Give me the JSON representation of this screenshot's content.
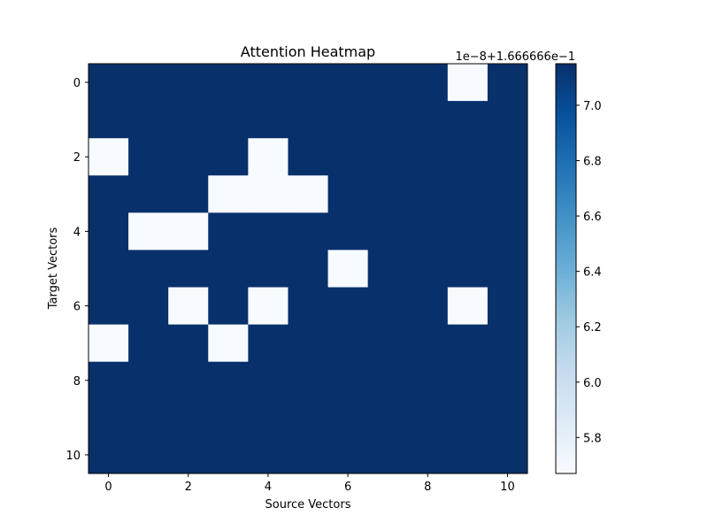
{
  "chart_data": {
    "type": "heatmap",
    "title": "Attention Heatmap",
    "xlabel": "Source Vectors",
    "ylabel": "Target Vectors",
    "x_ticks": [
      "0",
      "2",
      "4",
      "6",
      "8",
      "10"
    ],
    "y_ticks": [
      "0",
      "2",
      "4",
      "6",
      "8",
      "10"
    ],
    "rows": 11,
    "cols": 11,
    "low_value": 0.16666665733,
    "high_value": 0.16666667149,
    "cells": [
      [
        1,
        1,
        1,
        1,
        1,
        1,
        1,
        1,
        1,
        0,
        1
      ],
      [
        1,
        1,
        1,
        1,
        1,
        1,
        1,
        1,
        1,
        1,
        1
      ],
      [
        0,
        1,
        1,
        1,
        0,
        1,
        1,
        1,
        1,
        1,
        1
      ],
      [
        1,
        1,
        1,
        0,
        0,
        0,
        1,
        1,
        1,
        1,
        1
      ],
      [
        1,
        0,
        0,
        1,
        1,
        1,
        1,
        1,
        1,
        1,
        1
      ],
      [
        1,
        1,
        1,
        1,
        1,
        1,
        0,
        1,
        1,
        1,
        1
      ],
      [
        1,
        1,
        0,
        1,
        0,
        1,
        1,
        1,
        1,
        0,
        1
      ],
      [
        0,
        1,
        1,
        0,
        1,
        1,
        1,
        1,
        1,
        1,
        1
      ],
      [
        1,
        1,
        1,
        1,
        1,
        1,
        1,
        1,
        1,
        1,
        1
      ],
      [
        1,
        1,
        1,
        1,
        1,
        1,
        1,
        1,
        1,
        1,
        1
      ],
      [
        1,
        1,
        1,
        1,
        1,
        1,
        1,
        1,
        1,
        1,
        1
      ]
    ],
    "colormap": "Blues",
    "color_low": "#f7fbff",
    "color_high": "#08306b",
    "colorbar": {
      "offset_label": "1e−8+1.666666e−1",
      "tick_labels": [
        "5.8",
        "6.0",
        "6.2",
        "6.4",
        "6.6",
        "6.8",
        "7.0"
      ],
      "tick_values": [
        5.8,
        6.0,
        6.2,
        6.4,
        6.6,
        6.8,
        7.0
      ],
      "range": [
        5.67,
        7.15
      ]
    }
  }
}
